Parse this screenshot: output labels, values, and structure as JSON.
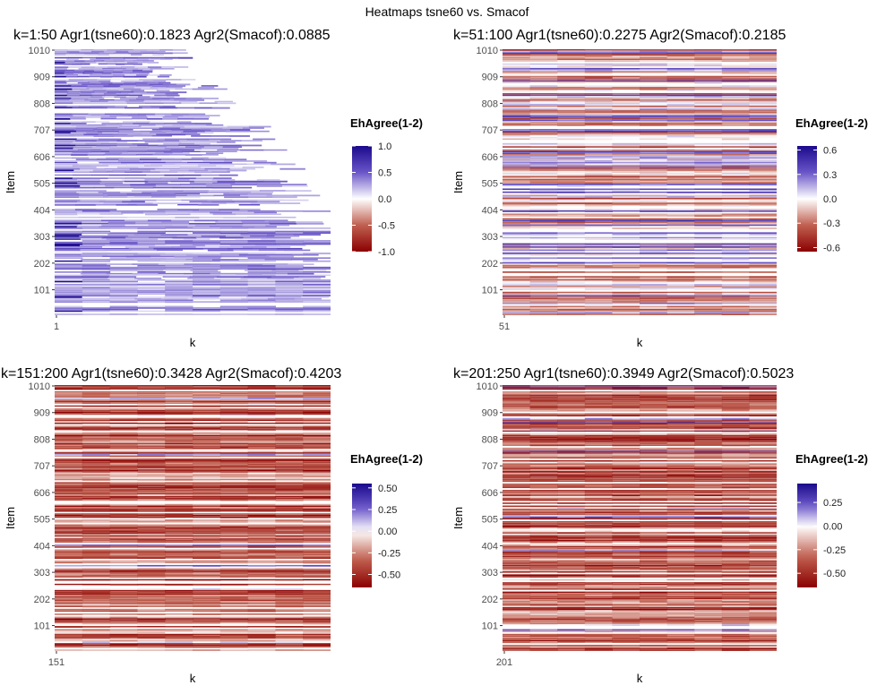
{
  "figure_title": "Heatmaps tsne60 vs. Smacof",
  "chart_data": [
    {
      "type": "heatmap",
      "title": "k=1:50 Agr1(tsne60):0.1823 Agr2(Smacof):0.0885",
      "xlabel": "k",
      "ylabel": "Item",
      "x_tick_labels": [
        "1"
      ],
      "y_tick_labels": [
        "101",
        "202",
        "303",
        "404",
        "505",
        "606",
        "707",
        "808",
        "909",
        "1010"
      ],
      "y_range": [
        1,
        1010
      ],
      "k_range": [
        1,
        50
      ],
      "legend": {
        "title": "EhAgree(1-2)",
        "range": [
          -1.0,
          1.0
        ],
        "ticks": [
          1.0,
          0.5,
          0.0,
          -0.5,
          -1.0
        ],
        "tick_labels": [
          "1.0",
          "0.5",
          "0.0",
          "-0.5",
          "-1.0"
        ]
      },
      "pattern": "sparse-purple"
    },
    {
      "type": "heatmap",
      "title": "k=51:100 Agr1(tsne60):0.2275 Agr2(Smacof):0.2185",
      "xlabel": "k",
      "ylabel": "Item",
      "x_tick_labels": [
        "51"
      ],
      "y_tick_labels": [
        "101",
        "202",
        "303",
        "404",
        "505",
        "606",
        "707",
        "808",
        "909",
        "1010"
      ],
      "y_range": [
        1,
        1010
      ],
      "k_range": [
        51,
        100
      ],
      "legend": {
        "title": "EhAgree(1-2)",
        "range": [
          -0.65,
          0.65
        ],
        "ticks": [
          0.6,
          0.3,
          0.0,
          -0.3,
          -0.6
        ],
        "tick_labels": [
          "0.6",
          "0.3",
          "0.0",
          "-0.3",
          "-0.6"
        ]
      },
      "pattern": "mixed"
    },
    {
      "type": "heatmap",
      "title": "k=151:200 Agr1(tsne60):0.3428 Agr2(Smacof):0.4203",
      "xlabel": "k",
      "ylabel": "Item",
      "x_tick_labels": [
        "151"
      ],
      "y_tick_labels": [
        "101",
        "202",
        "303",
        "404",
        "505",
        "606",
        "707",
        "808",
        "909",
        "1010"
      ],
      "y_range": [
        1,
        1010
      ],
      "k_range": [
        151,
        200
      ],
      "legend": {
        "title": "EhAgree(1-2)",
        "range": [
          -0.65,
          0.55
        ],
        "ticks": [
          0.5,
          0.25,
          0.0,
          -0.25,
          -0.5
        ],
        "tick_labels": [
          "0.50",
          "0.25",
          "0.00",
          "-0.25",
          "-0.50"
        ]
      },
      "pattern": "red-dominant"
    },
    {
      "type": "heatmap",
      "title": "k=201:250 Agr1(tsne60):0.3949 Agr2(Smacof):0.5023",
      "xlabel": "k",
      "ylabel": "Item",
      "x_tick_labels": [
        "201"
      ],
      "y_tick_labels": [
        "101",
        "202",
        "303",
        "404",
        "505",
        "606",
        "707",
        "808",
        "909",
        "1010"
      ],
      "y_range": [
        1,
        1010
      ],
      "k_range": [
        201,
        250
      ],
      "legend": {
        "title": "EhAgree(1-2)",
        "range": [
          -0.65,
          0.45
        ],
        "ticks": [
          0.25,
          0.0,
          -0.25,
          -0.5
        ],
        "tick_labels": [
          "0.25",
          "0.00",
          "-0.25",
          "-0.50"
        ]
      },
      "pattern": "red-dominant"
    }
  ],
  "colors": {
    "high": "#1a0a8c",
    "mid_high": "#6a55c8",
    "zero": "#ffffff",
    "mid_low": "#c06050",
    "low": "#8b0000"
  }
}
